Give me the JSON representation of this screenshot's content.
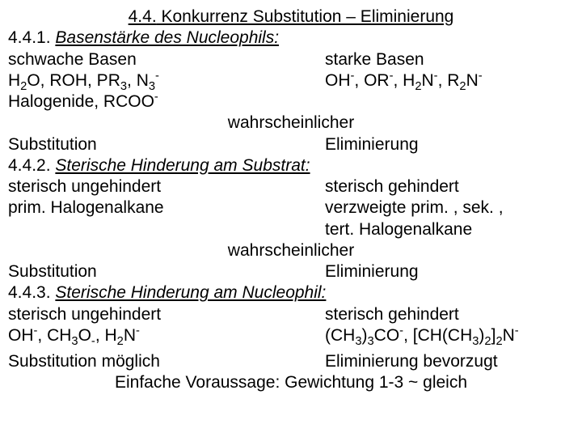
{
  "title_num": "4.4.",
  "title_text": "Konkurrenz Substitution – Eliminierung",
  "s1_num": "4.4.1.",
  "s1_text": "Basenstärke des Nucleophils:",
  "s1_left_h": "schwache Basen",
  "s1_right_h": "starke Basen",
  "s1_left_ex3": "Halogenide, RCOO",
  "center_label": "wahrscheinlicher",
  "out_sub": "Substitution",
  "out_elim": "Eliminierung",
  "s2_num": "4.4.2.",
  "s2_text": "Sterische Hinderung am Substrat:",
  "s2_left_h": "sterisch ungehindert",
  "s2_right_h": "sterisch gehindert",
  "s2_left_ex": "prim. Halogenalkane",
  "s2_right_ex1": "verzweigte prim. , sek. ,",
  "s2_right_ex2": "tert. Halogenalkane",
  "s3_num": "4.4.3.",
  "s3_text": "Sterische Hinderung am Nucleophil:",
  "s3_left_h": "sterisch ungehindert",
  "s3_right_h": "sterisch gehindert",
  "out_sub2": "Substitution möglich",
  "out_elim2": "Eliminierung bevorzugt",
  "footer": "Einfache Voraussage: Gewichtung 1-3 ~ gleich"
}
